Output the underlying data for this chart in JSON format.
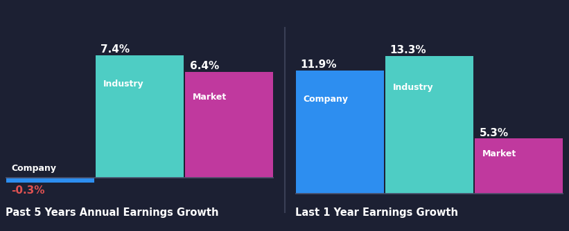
{
  "background_color": "#1c2033",
  "groups": [
    {
      "title": "Past 5 Years Annual Earnings Growth",
      "bars": [
        {
          "label": "Company",
          "value": -0.3,
          "color": "#2d8ef0",
          "value_color": "#e05252"
        },
        {
          "label": "Industry",
          "value": 7.4,
          "color": "#4ecdc4",
          "value_color": "#ffffff"
        },
        {
          "label": "Market",
          "value": 6.4,
          "color": "#c0399e",
          "value_color": "#ffffff"
        }
      ]
    },
    {
      "title": "Last 1 Year Earnings Growth",
      "bars": [
        {
          "label": "Company",
          "value": 11.9,
          "color": "#2d8ef0",
          "value_color": "#ffffff"
        },
        {
          "label": "Industry",
          "value": 13.3,
          "color": "#4ecdc4",
          "value_color": "#ffffff"
        },
        {
          "label": "Market",
          "value": 5.3,
          "color": "#c0399e",
          "value_color": "#ffffff"
        }
      ]
    }
  ],
  "text_color": "#ffffff",
  "title_fontsize": 10.5,
  "label_fontsize": 9,
  "value_fontsize": 11,
  "separator_color": "#3a3f55",
  "baseline_color": "#4a4f6a"
}
